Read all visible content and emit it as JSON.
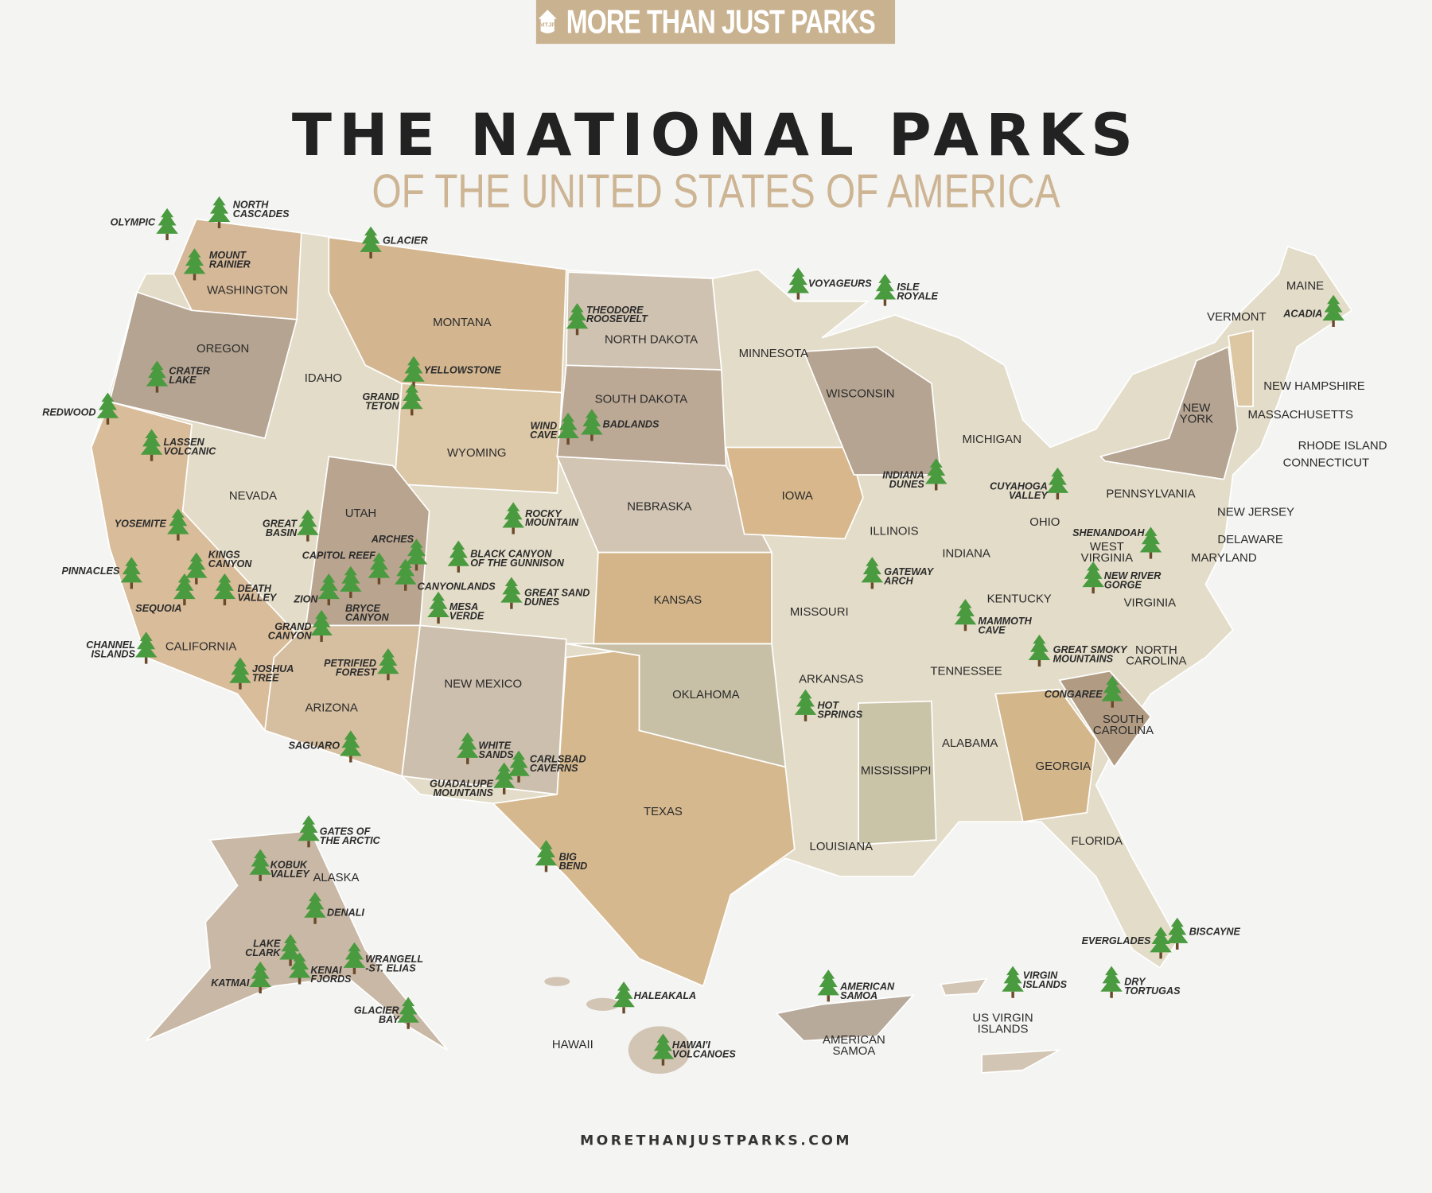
{
  "brand": {
    "name": "MORE THAN JUST PARKS",
    "logo_monogram": "MTJP",
    "accent": "#c9b28f"
  },
  "title": "THE NATIONAL PARKS",
  "subtitle": "OF THE UNITED STATES OF AMERICA",
  "footer": "MORETHANJUSTPARKS.COM",
  "colors": {
    "park_icon": "#4a9a3f",
    "background": "#f4f4f3",
    "state_light": "#e3dcc8",
    "state_tan": "#d4b68e",
    "state_taupe": "#b7a590"
  },
  "park_icon": "pine-tree-icon",
  "states": [
    "WASHINGTON",
    "OREGON",
    "CALIFORNIA",
    "NEVADA",
    "IDAHO",
    "MONTANA",
    "WYOMING",
    "UTAH",
    "ARIZONA",
    "NEW MEXICO",
    "TEXAS",
    "OKLAHOMA",
    "KANSAS",
    "NEBRASKA",
    "SOUTH DAKOTA",
    "NORTH DAKOTA",
    "MINNESOTA",
    "IOWA",
    "MISSOURI",
    "ARKANSAS",
    "LOUISIANA",
    "WISCONSIN",
    "ILLINOIS",
    "MICHIGAN",
    "INDIANA",
    "OHIO",
    "KENTUCKY",
    "TENNESSEE",
    "MISSISSIPPI",
    "ALABAMA",
    "GEORGIA",
    "FLORIDA",
    "SOUTH|CAROLINA",
    "NORTH|CAROLINA",
    "VIRGINIA",
    "WEST|VIRGINIA",
    "PENNSYLVANIA",
    "NEW|YORK",
    "MAINE",
    "VERMONT",
    "NEW HAMPSHIRE",
    "MASSACHUSETTS",
    "RHODE ISLAND",
    "CONNECTICUT",
    "NEW JERSEY",
    "DELAWARE",
    "MARYLAND",
    "ALASKA",
    "HAWAII",
    "AMERICAN|SAMOA",
    "US VIRGIN|ISLANDS"
  ],
  "parks": [
    "OLYMPIC",
    "NORTH|CASCADES",
    "MOUNT|RAINIER",
    "GLACIER",
    "THEODORE|ROOSEVELT",
    "VOYAGEURS",
    "ISLE|ROYALE",
    "ACADIA",
    "YELLOWSTONE",
    "GRAND|TETON",
    "CRATER|LAKE",
    "REDWOOD",
    "LASSEN|VOLCANIC",
    "WIND|CAVE",
    "BADLANDS",
    "INDIANA|DUNES",
    "CUYAHOGA|VALLEY",
    "ROCKY|MOUNTAIN",
    "GREAT|BASIN",
    "YOSEMITE",
    "ARCHES",
    "BLACK CANYON|OF THE GUNNISON",
    "CAPITOL REEF",
    "KINGS|CANYON",
    "PINNACLES",
    "CANYONLANDS",
    "DEATH|VALLEY",
    "ZION",
    "BRYCE|CANYON",
    "GREAT SAND|DUNES",
    "SEQUOIA",
    "MESA|VERDE",
    "GRAND|CANYON",
    "CHANNEL|ISLANDS",
    "JOSHUA|TREE",
    "PETRIFIED|FOREST",
    "GATEWAY|ARCH",
    "SHENANDOAH",
    "NEW RIVER|GORGE",
    "MAMMOTH|CAVE",
    "GREAT SMOKY|MOUNTAINS",
    "HOT|SPRINGS",
    "CONGAREE",
    "SAGUARO",
    "WHITE|SANDS",
    "CARLSBAD|CAVERNS",
    "GUADALUPE|MOUNTAINS",
    "BIG|BEND",
    "GATES OF|THE ARCTIC",
    "KOBUK|VALLEY",
    "DENALI",
    "LAKE|CLARK",
    "KENAI|FJORDS",
    "WRANGELL|-ST. ELIAS",
    "KATMAI",
    "GLACIER|BAY",
    "HALEAKALA",
    "HAWAI'I|VOLCANOES",
    "AMERICAN|SAMOA",
    "VIRGIN|ISLANDS",
    "DRY|TORTUGAS",
    "EVERGLADES",
    "BISCAYNE"
  ]
}
